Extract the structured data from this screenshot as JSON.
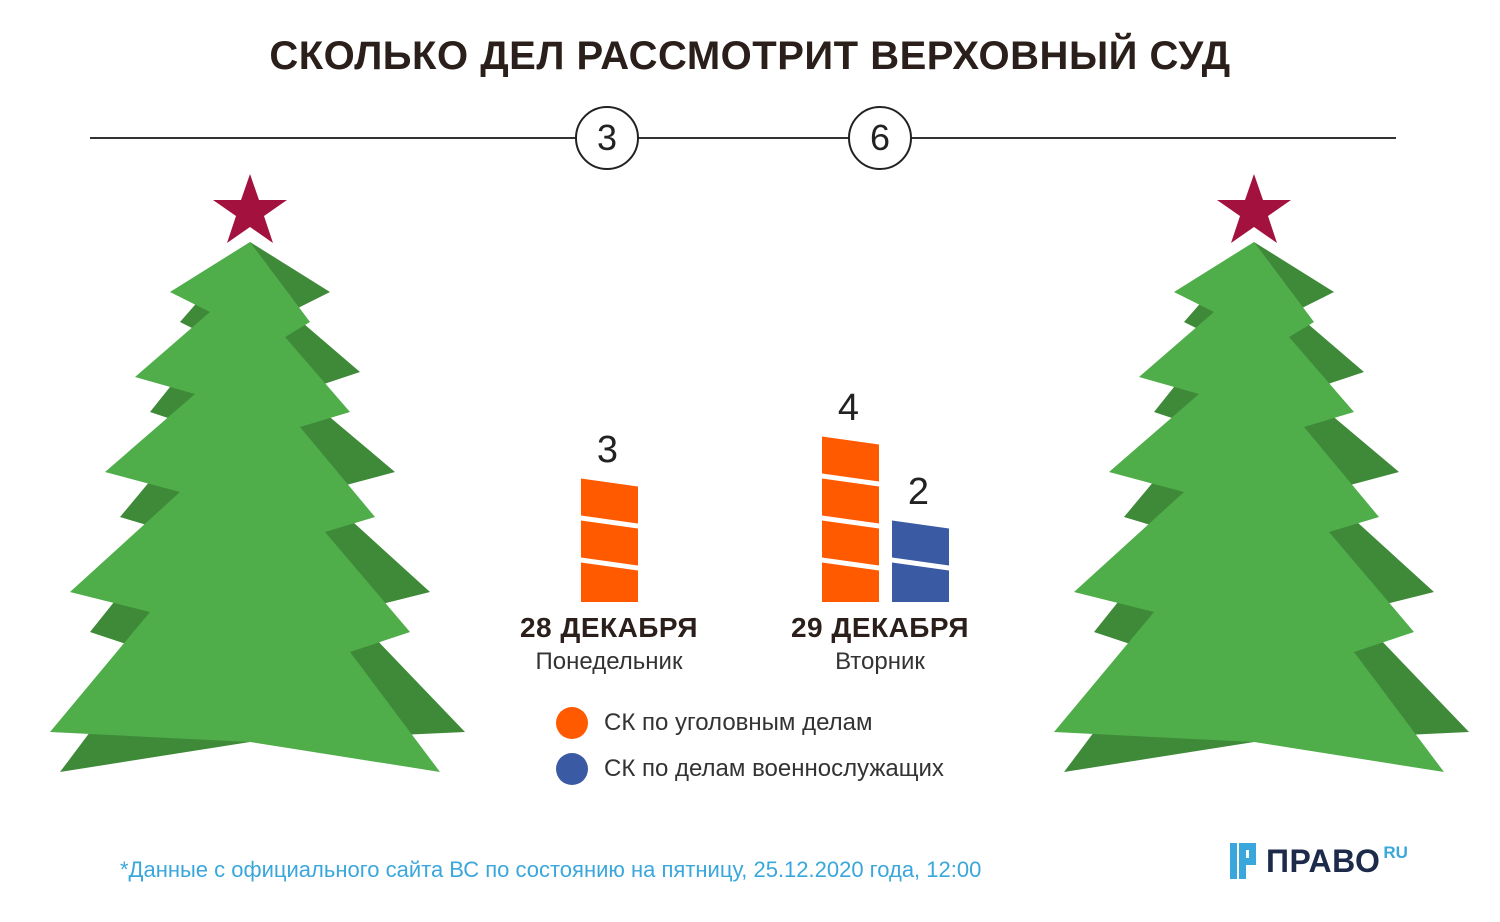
{
  "title": "СКОЛЬКО ДЕЛ РАССМОТРИТ ВЕРХОВНЫЙ СУД",
  "chart_data": {
    "type": "bar",
    "title": "СКОЛЬКО ДЕЛ РАССМОТРИТ ВЕРХОВНЫЙ СУД",
    "categories": [
      {
        "date": "28 ДЕКАБРЯ",
        "weekday": "Понедельник",
        "total": "3"
      },
      {
        "date": "29 ДЕКАБРЯ",
        "weekday": "Вторник",
        "total": "6"
      }
    ],
    "series": [
      {
        "name": "СК по уголовным делам",
        "color": "#ff5a00",
        "values": [
          3,
          4
        ]
      },
      {
        "name": "СК по делам военнослужащих",
        "color": "#3a5aa4",
        "values": [
          0,
          2
        ]
      }
    ],
    "xlabel": "",
    "ylabel": ""
  },
  "decor": {
    "tree_colors": {
      "light": "#4fae4a",
      "dark": "#3f8a39",
      "star": "#a3123f"
    }
  },
  "footnote": "*Данные с официального сайта ВС по состоянию на пятницу, 25.12.2020 года, 12:00",
  "logo": {
    "name": "ПРАВО",
    "suffix": "RU"
  }
}
